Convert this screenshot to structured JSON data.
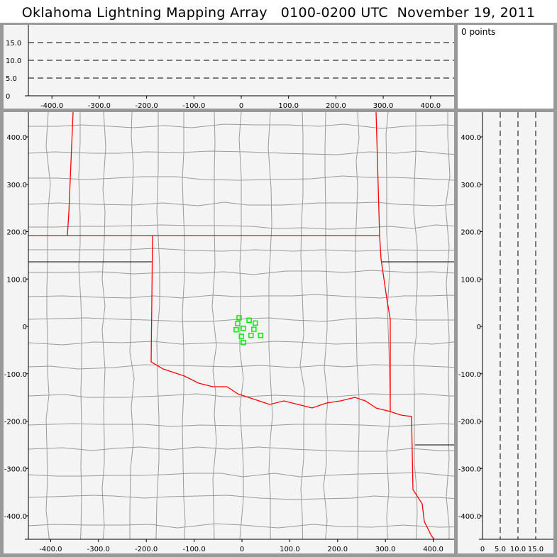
{
  "title": "Oklahoma Lightning Mapping Array   0100-0200 UTC  November 19, 2011",
  "points_label": "0 points",
  "colors": {
    "state_border": "#ff0000",
    "county_border": "#999999",
    "station": "#00ee00",
    "panel_bg": "#f4f4f4",
    "frame": "#999999"
  },
  "chart_data": [
    {
      "type": "scatter",
      "panel": "altitude-vs-east-west",
      "xlim": [
        -450,
        450
      ],
      "ylim": [
        0,
        20
      ],
      "xticks": [
        "-400.0",
        "-300.0",
        "-200.0",
        "-100.0",
        "0",
        "100.0",
        "200.0",
        "300.0",
        "400.0"
      ],
      "yticks": [
        "0",
        "5.0",
        "10.0",
        "15.0"
      ],
      "dashed_grid_y": [
        5,
        10,
        15
      ],
      "points": []
    },
    {
      "type": "scatter",
      "panel": "plan-view-map",
      "xlim": [
        -450,
        450
      ],
      "ylim": [
        -450,
        450
      ],
      "xticks": [
        "-400.0",
        "-300.0",
        "-200.0",
        "-100.0",
        "0",
        "100.0",
        "200.0",
        "300.0",
        "400.0"
      ],
      "yticks": [
        "-400.0",
        "-300.0",
        "-200.0",
        "-100.0",
        "0",
        "100.0",
        "200.0",
        "300.0",
        "400.0"
      ],
      "stations": [
        [
          -6,
          18
        ],
        [
          15,
          13
        ],
        [
          28,
          7
        ],
        [
          -9,
          6
        ],
        [
          3,
          -4
        ],
        [
          -12,
          -7
        ],
        [
          25,
          -6
        ],
        [
          -1,
          -21
        ],
        [
          19,
          -19
        ],
        [
          39,
          -19
        ],
        [
          3,
          -34
        ]
      ]
    },
    {
      "type": "scatter",
      "panel": "north-south-vs-altitude",
      "xlim": [
        0,
        20
      ],
      "ylim": [
        -450,
        450
      ],
      "xticks": [
        "0",
        "5.0",
        "10.0",
        "15.0"
      ],
      "dashed_grid_x": [
        5,
        10,
        15
      ],
      "points": []
    }
  ]
}
